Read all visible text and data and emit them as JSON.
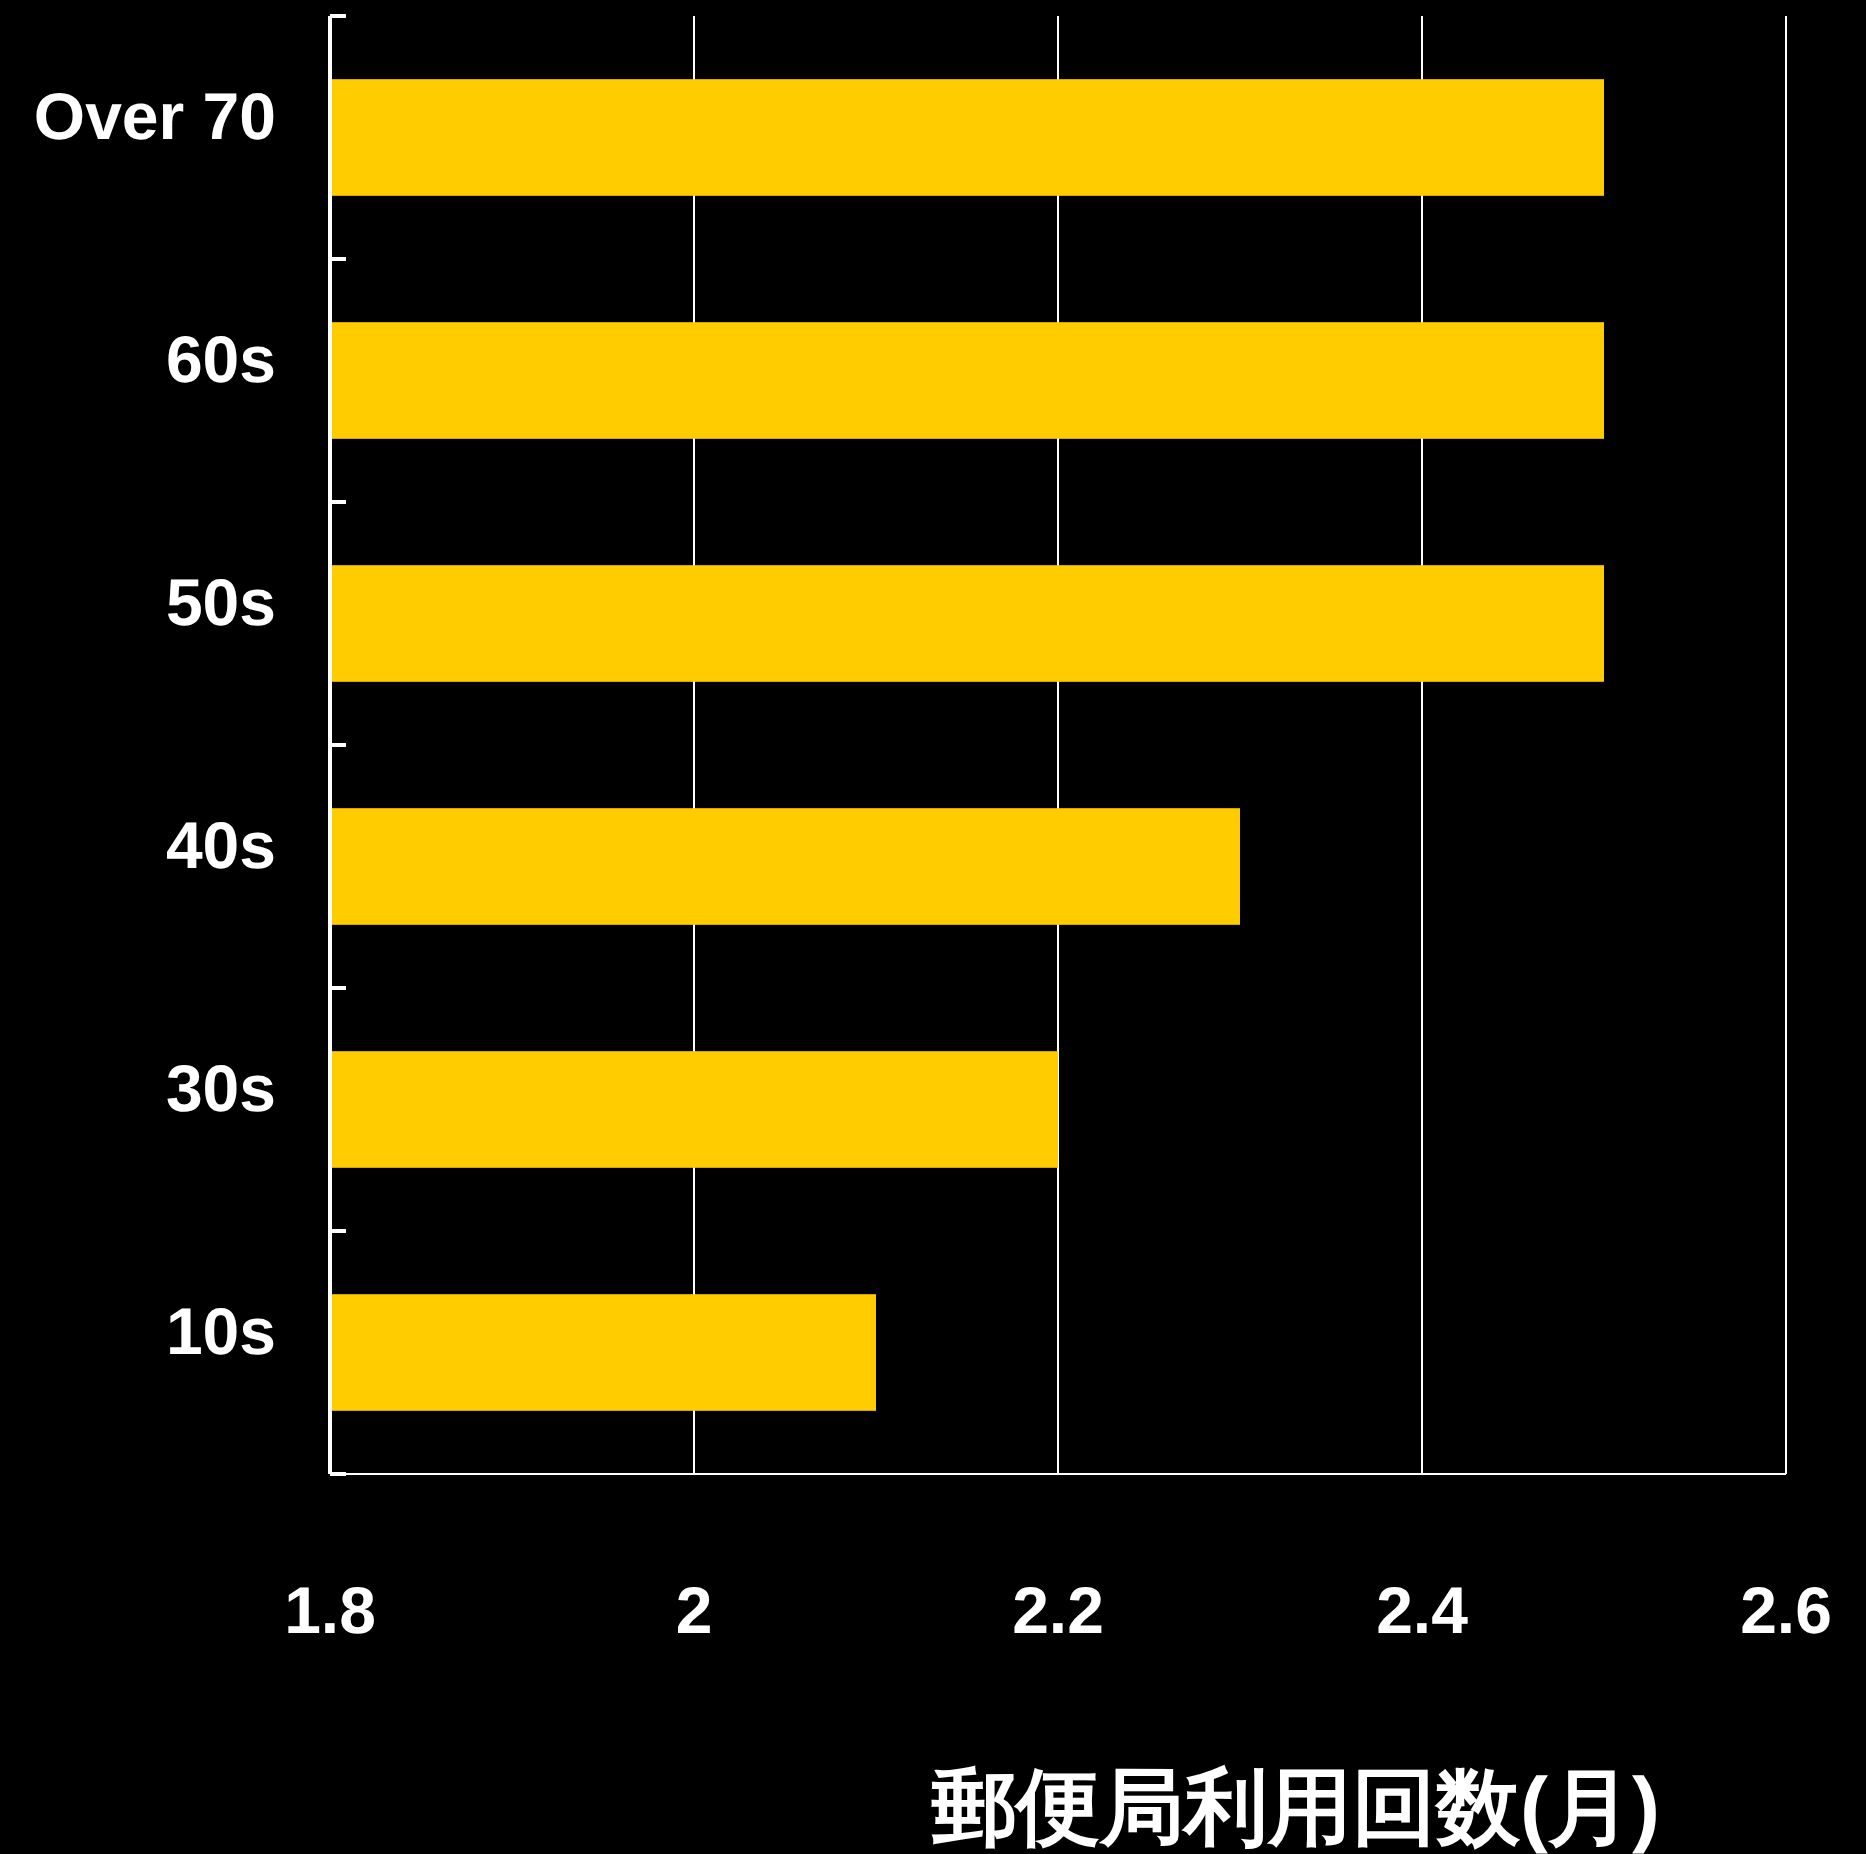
{
  "chart_data": {
    "type": "bar",
    "orientation": "horizontal",
    "xlabel": "郵便局利用回数(月)",
    "categories": [
      "Over 70",
      "60s",
      "50s",
      "40s",
      "30s",
      "10s"
    ],
    "values": [
      2.5,
      2.5,
      2.5,
      2.3,
      2.2,
      2.1
    ],
    "color": "#ffcc00",
    "xlim": [
      1.8,
      2.6
    ],
    "xticks": [
      1.8,
      2,
      2.2,
      2.4,
      2.6
    ],
    "grid": "x"
  }
}
